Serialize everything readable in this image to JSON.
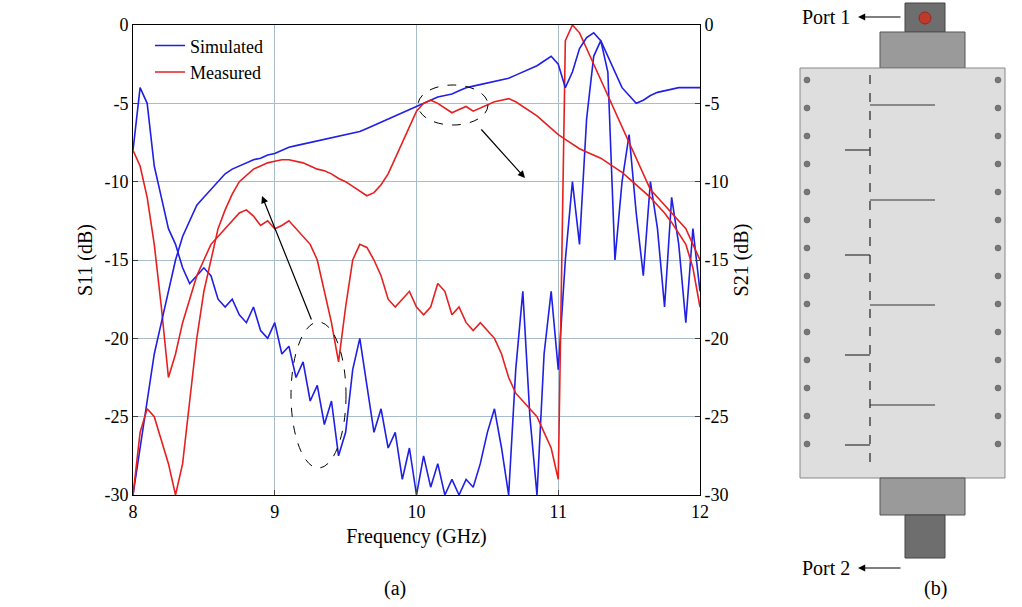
{
  "chart_data": {
    "type": "line",
    "x_label": "Frequency (GHz)",
    "y_label": "S11 (dB)",
    "y2_label": "S21 (dB)",
    "xlim": [
      8,
      12
    ],
    "xticks": [
      8,
      9,
      10,
      11,
      12
    ],
    "ylim": [
      -30,
      0
    ],
    "yticks": [
      -30,
      -25,
      -20,
      -15,
      -10,
      -5,
      0
    ],
    "y2lim": [
      -30,
      0
    ],
    "y2ticks": [
      -30,
      -25,
      -20,
      -15,
      -10,
      -5,
      0
    ],
    "grid": true,
    "legend": "upper left",
    "x": [
      8,
      8.05,
      8.1,
      8.15,
      8.2,
      8.25,
      8.3,
      8.35,
      8.4,
      8.45,
      8.5,
      8.55,
      8.6,
      8.65,
      8.7,
      8.75,
      8.8,
      8.85,
      8.9,
      8.95,
      9,
      9.05,
      9.1,
      9.15,
      9.2,
      9.25,
      9.3,
      9.35,
      9.4,
      9.45,
      9.5,
      9.55,
      9.6,
      9.65,
      9.7,
      9.75,
      9.8,
      9.85,
      9.9,
      9.95,
      10,
      10.05,
      10.1,
      10.15,
      10.2,
      10.25,
      10.3,
      10.35,
      10.4,
      10.45,
      10.5,
      10.55,
      10.6,
      10.65,
      10.7,
      10.75,
      10.8,
      10.85,
      10.9,
      10.95,
      11,
      11.05,
      11.1,
      11.15,
      11.2,
      11.25,
      11.3,
      11.35,
      11.4,
      11.45,
      11.5,
      11.55,
      11.6,
      11.65,
      11.7,
      11.75,
      11.8,
      11.85,
      11.9,
      11.95,
      12
    ],
    "series": [
      {
        "name": "Simulated",
        "color": "#1f1fe6",
        "axis": "y",
        "values": [
          -8,
          -4,
          -5,
          -9,
          -11,
          -13,
          -14,
          -15.5,
          -16.5,
          -16,
          -15.5,
          -16,
          -17.5,
          -18,
          -17.5,
          -18.5,
          -19,
          -18,
          -19.5,
          -20,
          -19,
          -21,
          -20.5,
          -22.5,
          -21.5,
          -24,
          -23,
          -25.5,
          -24,
          -27.5,
          -26,
          -22,
          -20,
          -23,
          -26,
          -24.5,
          -27,
          -26,
          -29,
          -27,
          -30,
          -27.5,
          -29.5,
          -28,
          -30,
          -29,
          -30,
          -29,
          -29.5,
          -28,
          -26,
          -24.5,
          -27,
          -30,
          -22,
          -17,
          -25,
          -30,
          -21,
          -17,
          -22,
          -15,
          -10,
          -14,
          -6,
          -2,
          -1,
          -3,
          -15,
          -10,
          -7,
          -12,
          -16,
          -10,
          -13,
          -18,
          -11,
          -14,
          -19,
          -13,
          -17
        ]
      },
      {
        "name": "Measured",
        "color": "#e61f1f",
        "axis": "y",
        "values": [
          -8,
          -9,
          -11,
          -14,
          -18,
          -22.5,
          -21,
          -19,
          -17.5,
          -16,
          -15,
          -14,
          -13.5,
          -13,
          -12.5,
          -12,
          -11.8,
          -12.2,
          -12.8,
          -12.5,
          -13,
          -12.8,
          -12.5,
          -13,
          -13.5,
          -14,
          -15,
          -17,
          -19,
          -21.5,
          -18,
          -15,
          -14,
          -14.2,
          -15,
          -16,
          -17.5,
          -18,
          -17.5,
          -17,
          -18,
          -18.5,
          -18,
          -16.5,
          -17,
          -18.5,
          -18,
          -19,
          -19.5,
          -19,
          -19.5,
          -20,
          -21,
          -22.5,
          -23.5,
          -24,
          -24.5,
          -25,
          -26,
          -27,
          -29,
          -1,
          0,
          -0.5,
          -1.5,
          -2.5,
          -3.5,
          -4.5,
          -5.5,
          -6.5,
          -7.5,
          -8.5,
          -9.5,
          -10.5,
          -11,
          -11.5,
          -12,
          -12.5,
          -13,
          -14,
          -15
        ]
      },
      {
        "name": "Simulated",
        "color": "#1f1fe6",
        "axis": "y2",
        "values": [
          -30,
          -27,
          -24,
          -21,
          -19,
          -17,
          -15,
          -13.5,
          -12.5,
          -11.5,
          -11,
          -10.5,
          -10,
          -9.5,
          -9.2,
          -9,
          -8.8,
          -8.6,
          -8.5,
          -8.3,
          -8.2,
          -8,
          -7.8,
          -7.7,
          -7.6,
          -7.5,
          -7.4,
          -7.3,
          -7.2,
          -7.1,
          -7,
          -6.9,
          -6.8,
          -6.6,
          -6.4,
          -6.2,
          -6,
          -5.8,
          -5.6,
          -5.4,
          -5.2,
          -5,
          -4.8,
          -4.6,
          -4.5,
          -4.4,
          -4.2,
          -4,
          -3.9,
          -3.8,
          -3.7,
          -3.6,
          -3.5,
          -3.4,
          -3.2,
          -3,
          -2.8,
          -2.6,
          -2.3,
          -2,
          -2.5,
          -4,
          -3,
          -1.5,
          -0.8,
          -0.5,
          -1,
          -2,
          -3,
          -4,
          -4.5,
          -5,
          -4.8,
          -4.5,
          -4.3,
          -4.2,
          -4.1,
          -4,
          -4,
          -4,
          -4
        ]
      },
      {
        "name": "Measured",
        "color": "#e61f1f",
        "axis": "y2",
        "values": [
          -30,
          -26,
          -24.5,
          -25,
          -26.5,
          -28,
          -30,
          -28,
          -24,
          -20,
          -17,
          -15,
          -13,
          -11.8,
          -10.8,
          -10,
          -9.6,
          -9.2,
          -9,
          -8.8,
          -8.7,
          -8.6,
          -8.6,
          -8.7,
          -8.8,
          -9,
          -9.2,
          -9.3,
          -9.5,
          -9.8,
          -10,
          -10.3,
          -10.6,
          -10.9,
          -10.7,
          -10.2,
          -9.5,
          -8.5,
          -7.5,
          -6.5,
          -5.5,
          -5,
          -4.8,
          -5,
          -5.3,
          -5.6,
          -5.4,
          -5.2,
          -5.5,
          -5.3,
          -5.1,
          -4.9,
          -4.8,
          -4.7,
          -4.9,
          -5.2,
          -5.5,
          -5.8,
          -6.2,
          -6.6,
          -7,
          -7.3,
          -7.6,
          -7.9,
          -8.1,
          -8.3,
          -8.5,
          -8.8,
          -9.1,
          -9.4,
          -9.8,
          -10.2,
          -10.6,
          -11,
          -11.5,
          -12,
          -12.6,
          -13.3,
          -14,
          -15.5,
          -18
        ]
      }
    ],
    "annotations": [
      {
        "text": "(a)"
      },
      {
        "text": "(b)"
      },
      {
        "text": "Port 1"
      },
      {
        "text": "Port 2"
      }
    ]
  }
}
